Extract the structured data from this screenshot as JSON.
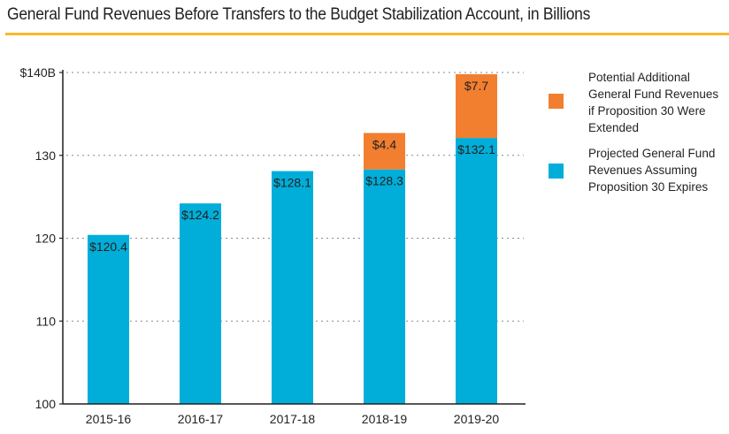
{
  "chart_data": {
    "type": "bar",
    "stacked": true,
    "title": "General Fund Revenues Before Transfers to the Budget Stabilization Account, in Billions",
    "xlabel": "",
    "ylabel": "",
    "ylim": [
      100,
      140
    ],
    "yticks": [
      100,
      110,
      120,
      130,
      140
    ],
    "ytick_labels": [
      "100",
      "110",
      "120",
      "130",
      "$140B"
    ],
    "grid": true,
    "legend_position": "right",
    "categories": [
      "2015-16",
      "2016-17",
      "2017-18",
      "2018-19",
      "2019-20"
    ],
    "series": [
      {
        "name": "Projected General Fund Revenues Assuming Proposition 30 Expires",
        "color": "#00aed9",
        "values": [
          120.4,
          124.2,
          128.1,
          128.3,
          132.1
        ],
        "labels": [
          "$120.4",
          "$124.2",
          "$128.1",
          "$128.3",
          "$132.1"
        ]
      },
      {
        "name": "Potential Additional General Fund Revenues if Proposition 30 Were Extended",
        "color": "#f27f30",
        "values": [
          null,
          null,
          null,
          4.4,
          7.7
        ],
        "labels": [
          null,
          null,
          null,
          "$4.4",
          "$7.7"
        ]
      }
    ]
  },
  "legend": [
    {
      "label": "Potential Additional General Fund Revenues if Proposition 30 Were Extended",
      "color": "#f27f30"
    },
    {
      "label": "Projected General Fund Revenues Assuming Proposition 30 Expires",
      "color": "#00aed9"
    }
  ],
  "colors": {
    "accent_rule": "#fbb72c",
    "axis": "#231f20",
    "grid": "#8a8a8a"
  }
}
